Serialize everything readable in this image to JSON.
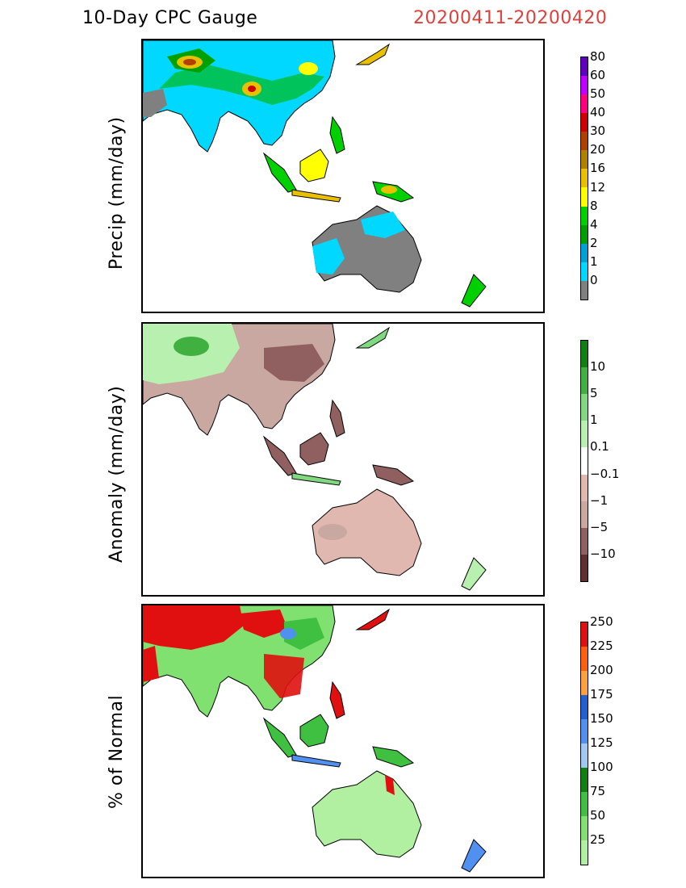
{
  "header": {
    "title": "10-Day CPC Gauge",
    "date_range": "20200411-20200420"
  },
  "panels": [
    {
      "ylabel": "Precip (mm/day)",
      "colorbar": {
        "colors": [
          "#808080",
          "#00d8ff",
          "#00a0d8",
          "#00a000",
          "#00d000",
          "#ffff00",
          "#e8c000",
          "#b08000",
          "#b04000",
          "#d00000",
          "#ff0080",
          "#c000ff",
          "#6000c0"
        ],
        "labels": [
          "0",
          "1",
          "2",
          "4",
          "8",
          "12",
          "16",
          "20",
          "30",
          "40",
          "50",
          "60",
          "80"
        ]
      }
    },
    {
      "ylabel": "Anomaly (mm/day)",
      "colorbar": {
        "colors": [
          "#603030",
          "#906060",
          "#c8a8a0",
          "#e0b8b0",
          "#ffffff",
          "#b8f0b0",
          "#80d880",
          "#40b040",
          "#108010"
        ],
        "labels": [
          "−10",
          "−5",
          "−1",
          "−0.1",
          "0.1",
          "1",
          "5",
          "10"
        ]
      }
    },
    {
      "ylabel": "% of Normal",
      "colorbar": {
        "colors": [
          "#b0f0a0",
          "#80e070",
          "#40c040",
          "#108010",
          "#a0c8f0",
          "#5090f0",
          "#2060d0",
          "#ffa040",
          "#ff6010",
          "#e01010"
        ],
        "labels": [
          "25",
          "50",
          "75",
          "100",
          "125",
          "150",
          "175",
          "200",
          "225",
          "250"
        ]
      }
    }
  ]
}
